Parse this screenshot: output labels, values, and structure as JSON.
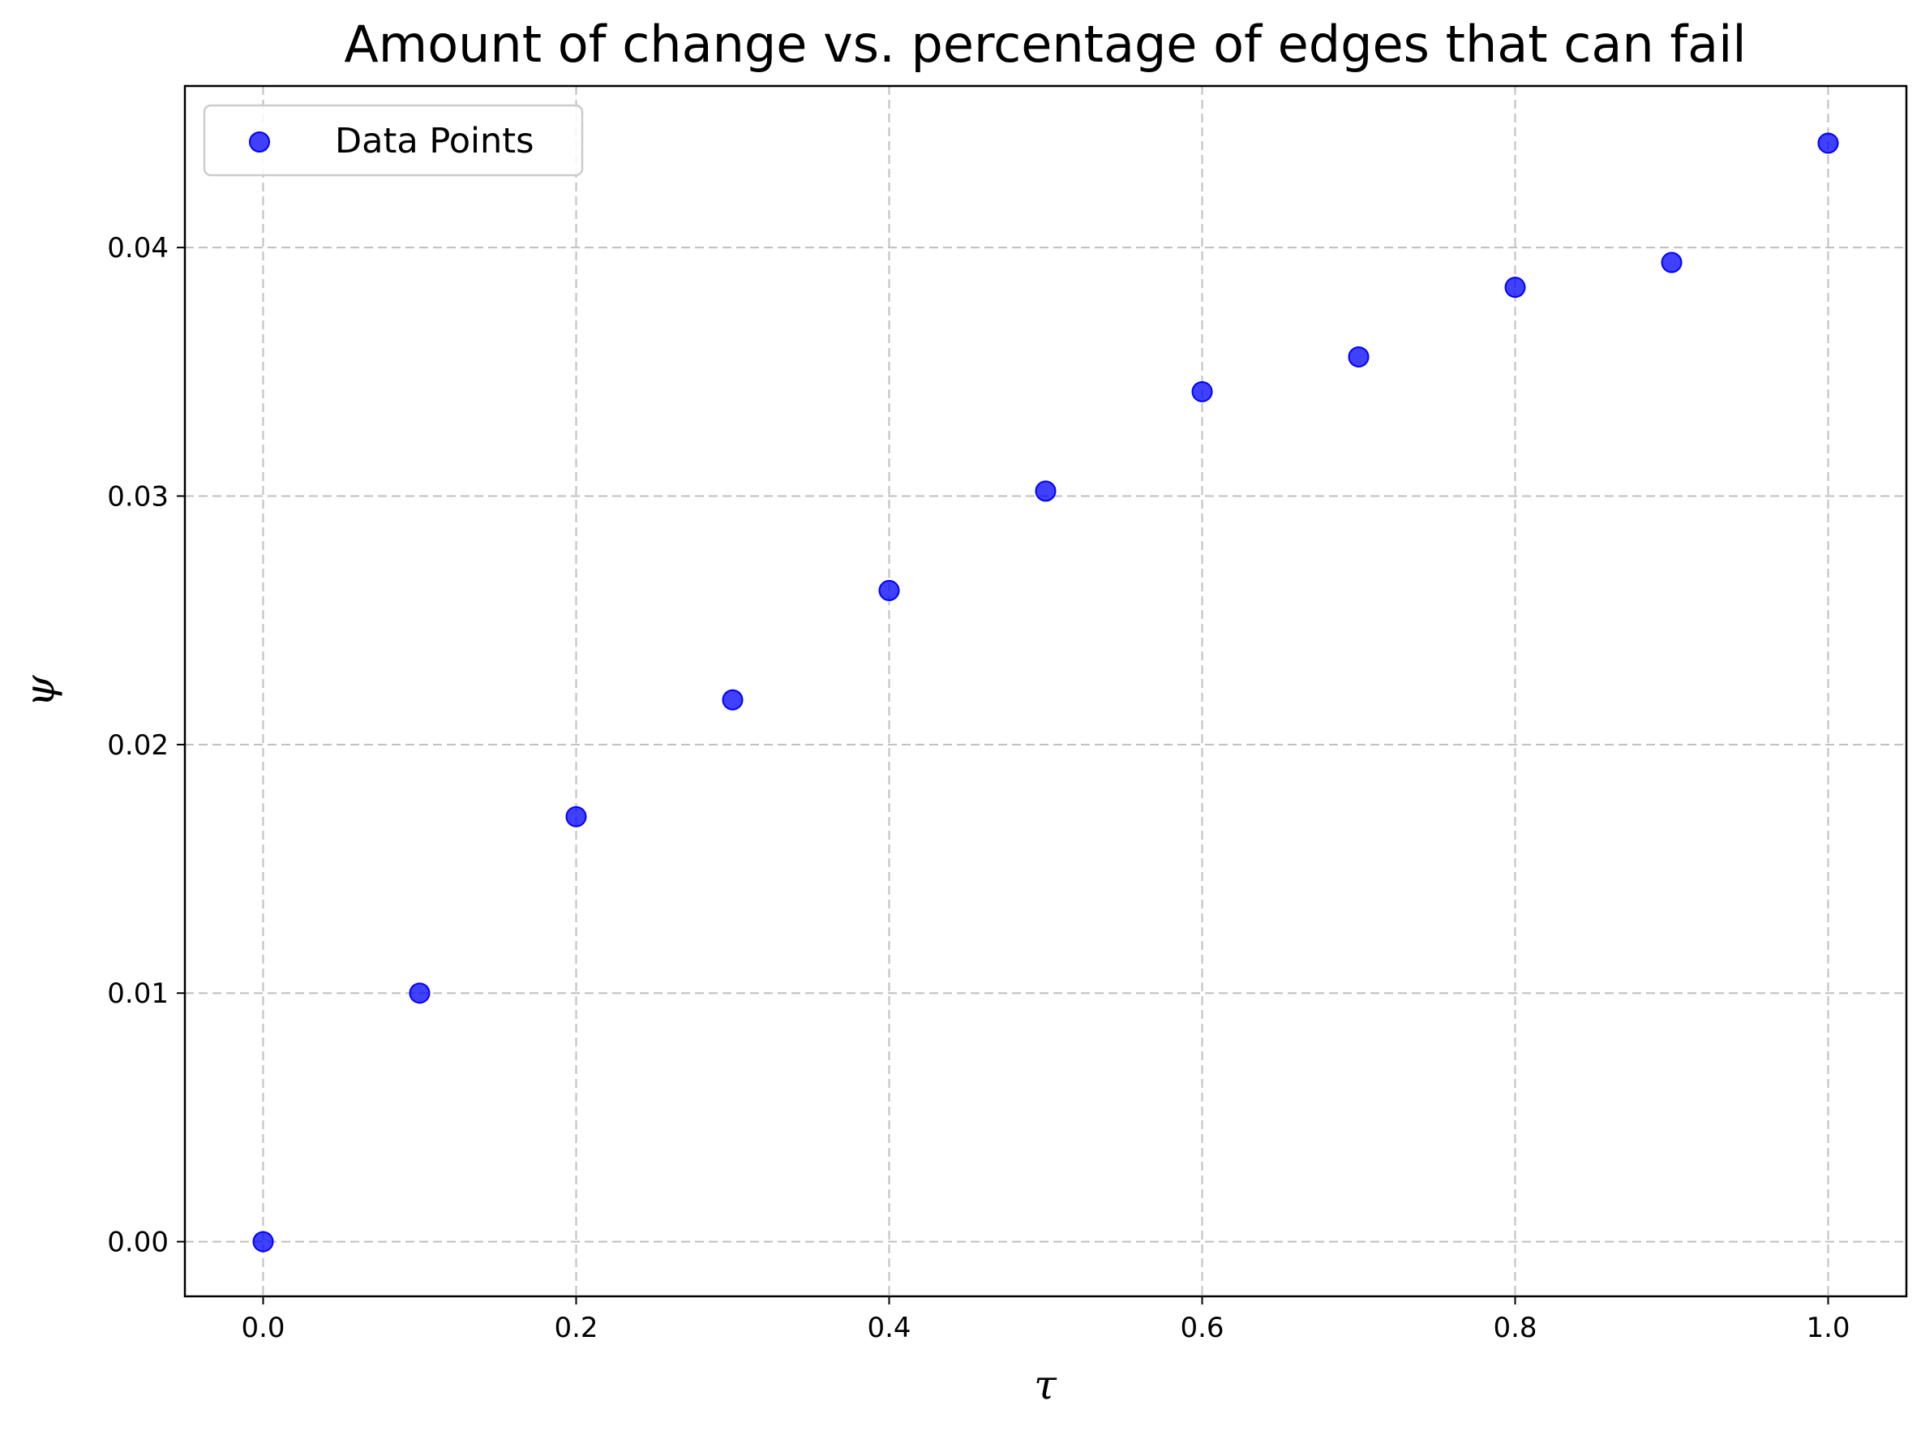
{
  "chart_data": {
    "type": "scatter",
    "title": "Amount of change vs. percentage of edges that can fail",
    "xlabel": "τ",
    "ylabel": "ψ",
    "xlim": [
      -0.05,
      1.05
    ],
    "ylim": [
      -0.0022,
      0.0465
    ],
    "x_ticks": [
      0.0,
      0.2,
      0.4,
      0.6,
      0.8,
      1.0
    ],
    "x_tick_labels": [
      "0.0",
      "0.2",
      "0.4",
      "0.6",
      "0.8",
      "1.0"
    ],
    "y_ticks": [
      0.0,
      0.01,
      0.02,
      0.03,
      0.04
    ],
    "y_tick_labels": [
      "0.00",
      "0.01",
      "0.02",
      "0.03",
      "0.04"
    ],
    "grid": true,
    "legend_position": "top-left",
    "series": [
      {
        "name": "Data Points",
        "color": "#0000ff",
        "marker": "circle",
        "x": [
          0.0,
          0.1,
          0.2,
          0.3,
          0.4,
          0.5,
          0.6,
          0.7,
          0.8,
          0.9,
          1.0
        ],
        "y": [
          0.0,
          0.01,
          0.0171,
          0.0218,
          0.0262,
          0.0302,
          0.0342,
          0.0356,
          0.0384,
          0.0394,
          0.0442
        ]
      }
    ]
  }
}
